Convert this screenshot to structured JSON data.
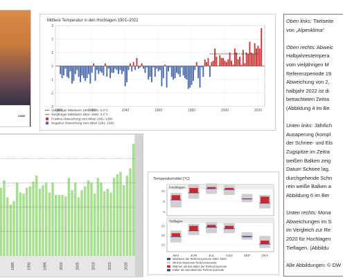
{
  "page": {
    "cover_logo_label": "ZAMG"
  },
  "colors": {
    "warm": "#c43b38",
    "cold": "#4a6aa8",
    "mean_line_1991": "#222222",
    "mean_line_1961": "#bb3333",
    "snow_green": "#a6df8e",
    "box_grey": "#cfcfcf",
    "box_red": "#c8282e",
    "box_blue": "#40409a"
  },
  "textbox": {
    "lines": [
      {
        "italic": "Oben links:",
        "text": " Titelseite"
      },
      {
        "italic": "",
        "text": "von „Alpenklima“"
      },
      {
        "italic": "",
        "text": ""
      },
      {
        "italic": "Oben rechts:",
        "text": " Abweic"
      },
      {
        "italic": "",
        "text": "Halbjahrestempera"
      },
      {
        "italic": "",
        "text": "vom vieljährigen M"
      },
      {
        "italic": "",
        "text": "Referenzperiode 19"
      },
      {
        "italic": "",
        "text": "Abweichung von 2,"
      },
      {
        "italic": "",
        "text": "halbjahr 2022 ist di"
      },
      {
        "italic": "",
        "text": "betrachteten Zeitra"
      },
      {
        "italic": "",
        "text": "(Abbildung 4 im Be"
      },
      {
        "italic": "",
        "text": ""
      },
      {
        "italic": "Unten links:",
        "text": " Jährlich"
      },
      {
        "italic": "",
        "text": "Ausaperung (kompl"
      },
      {
        "italic": "",
        "text": "der Schnee- und Eis"
      },
      {
        "italic": "",
        "text": "Zugspitze im Zeitra"
      },
      {
        "italic": "",
        "text": "weißen Balken zeig"
      },
      {
        "italic": "",
        "text": "Datum Schnee lag."
      },
      {
        "italic": "",
        "text": "durchgehende Schn"
      },
      {
        "italic": "",
        "text": "rein weiße Balken a"
      },
      {
        "italic": "",
        "text": "Abbildung 6 im Ber"
      },
      {
        "italic": "",
        "text": ""
      },
      {
        "italic": "Unten rechts:",
        "text": " Mona"
      },
      {
        "italic": "",
        "text": "Abweichungen im S"
      },
      {
        "italic": "",
        "text": "im Vergleich zur Re"
      },
      {
        "italic": "",
        "text": "2020 für Hochlagen"
      },
      {
        "italic": "",
        "text": "Tieflagen. (Abbildu"
      },
      {
        "italic": "",
        "text": ""
      },
      {
        "italic": "",
        "text": "Alle Abbildungen: © DW"
      }
    ]
  },
  "chart_data": [
    {
      "type": "bar",
      "title": "Mittlere Temperatur in den Hochlagen 1901–2022",
      "x_ticks": [
        "1900",
        "1920",
        "1940",
        "1960",
        "1980",
        "2000",
        "2020"
      ],
      "y_ticks": [
        "3",
        "2",
        "1",
        "0",
        "-1",
        "-2",
        "-3"
      ],
      "ylim": [
        -3,
        3
      ],
      "xlim": [
        1898,
        2024
      ],
      "years_start": 1901,
      "values": [
        -0.6,
        -0.9,
        -0.7,
        -0.2,
        -0.8,
        -0.9,
        -0.4,
        -1.3,
        -1.1,
        -0.6,
        -0.3,
        -0.8,
        -1.2,
        -0.7,
        -0.9,
        -1.1,
        -0.9,
        -0.6,
        -1.3,
        -0.5,
        0.2,
        -1.1,
        -0.3,
        -0.6,
        -0.4,
        -0.5,
        -0.7,
        0.2,
        -0.8,
        -0.2,
        -0.9,
        -0.5,
        -0.5,
        -0.2,
        -0.3,
        -0.6,
        -0.3,
        -0.6,
        -0.4,
        -1.5,
        -1.2,
        -0.3,
        0.2,
        -0.4,
        0.3,
        -0.3,
        0.6,
        -0.2,
        -0.1,
        0.2,
        -0.2,
        -0.5,
        -0.1,
        -1.0,
        -0.8,
        -1.2,
        -0.1,
        -0.8,
        -0.2,
        -0.4,
        -0.3,
        -1.5,
        -0.9,
        0.1,
        -1.6,
        -0.4,
        -0.1,
        -0.8,
        -1.0,
        -0.9,
        -0.5,
        -0.6,
        -0.8,
        -0.1,
        -0.7,
        -0.9,
        -1.0,
        -1.7,
        -1.6,
        -1.4,
        -1.1,
        -0.3,
        0.3,
        -0.9,
        -1.6,
        -0.1,
        -0.8,
        0.5,
        0.3,
        0.6,
        -0.8,
        0.3,
        0.4,
        1.3,
        0.7,
        0.0,
        0.8,
        0.6,
        0.6,
        0.4,
        0.3,
        0.5,
        1.0,
        0.4,
        0.1,
        1.3,
        1.0,
        0.5,
        0.7,
        0.1,
        1.2,
        0.2,
        1.0,
        0.9,
        1.8,
        1.0,
        0.9,
        1.7,
        1.3,
        1.5,
        1.3,
        2.8
      ],
      "legend": [
        {
          "label": "Vieljähriger Mittelwert 1991–2020, 5,0°C",
          "kind": "dash",
          "color_key": "mean_line_1991"
        },
        {
          "label": "Vieljähriger Mittelwert 1961–1990, 4,1°C",
          "kind": "line",
          "color_key": "mean_line_1961"
        },
        {
          "label": "Positive Abweichung vom Mittel 1961–1990",
          "kind": "box",
          "color_key": "warm"
        },
        {
          "label": "Negative Abweichung vom Mittel 1961–1990",
          "kind": "box",
          "color_key": "cold"
        }
      ]
    },
    {
      "type": "bar",
      "title": "",
      "x_ticks": [
        "1985",
        "1990",
        "1995",
        "2000",
        "2005",
        "2010",
        "2015",
        "2020"
      ],
      "years_start": 1981,
      "years_end": 2022,
      "snow_free_fraction": [
        0.56,
        0.62,
        0.48,
        0.42,
        0.45,
        0.6,
        0.52,
        0.51,
        0.56,
        0.57,
        0.61,
        0.66,
        0.55,
        0.58,
        0.6,
        0.52,
        0.6,
        0.5,
        0.5,
        0.5,
        0.49,
        0.64,
        0.54,
        0.6,
        0.48,
        0.54,
        0.57,
        0.62,
        0.6,
        0.51,
        0.64,
        0.6,
        0.53,
        0.55,
        0.52,
        0.64,
        0.67,
        0.69,
        0.58,
        0.66,
        0.72,
        0.92
      ]
    },
    {
      "type": "bar",
      "title": "Temperaturmittel [°C]",
      "panels": [
        {
          "name": "Hochlagen",
          "y_ticks": [
            "10",
            "5",
            "0"
          ],
          "ylim": [
            -2,
            13
          ],
          "months": [
            "MAI",
            "JUN",
            "JUL",
            "AUG",
            "SEP",
            "OKT"
          ],
          "ref_min": [
            2.0,
            6.2,
            8.5,
            8.0,
            4.5,
            1.5
          ],
          "ref_max": [
            9.0,
            13.0,
            13.5,
            12.8,
            8.5,
            8.0
          ],
          "ref_mean": [
            5.6,
            9.0,
            11.0,
            10.6,
            6.1,
            4.0
          ],
          "obs": [
            7.9,
            11.4,
            11.8,
            11.4,
            6.3,
            7.2
          ]
        },
        {
          "name": "Tieflagen",
          "y_ticks": [
            "20",
            "15",
            "10"
          ],
          "ylim": [
            6,
            24
          ],
          "months": [
            "MAI",
            "JUN",
            "JUL",
            "AUG",
            "SEP",
            "OKT"
          ],
          "ref_min": [
            11.0,
            15.0,
            16.0,
            16.0,
            12.5,
            8.0
          ],
          "ref_max": [
            17.5,
            21.0,
            22.0,
            21.5,
            16.5,
            14.5
          ],
          "ref_mean": [
            14.1,
            17.3,
            19.2,
            18.4,
            14.3,
            10.1
          ],
          "obs": [
            16.0,
            20.0,
            20.5,
            20.0,
            14.2,
            12.0
          ]
        }
      ],
      "legend": [
        {
          "label": "Mittelwert der Referenzperiode 1991–2020",
          "color_key": "box_blue"
        },
        {
          "label": "Minium-Maximum Referenzperiode",
          "color_key": "box_grey"
        },
        {
          "label": "Wärmer als das Mittel der Referenzperiode",
          "color_key": "box_red"
        },
        {
          "label": "Kälter als das Mittel der Referenzperiode",
          "color_key": "box_blue"
        }
      ]
    }
  ]
}
